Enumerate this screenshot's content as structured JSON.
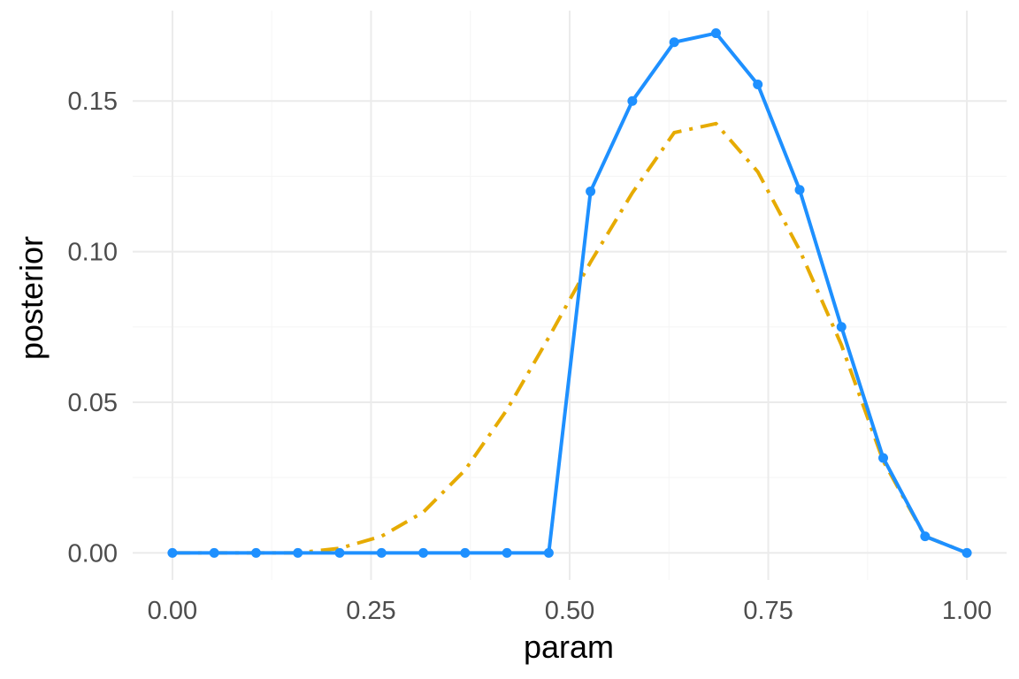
{
  "chart_data": {
    "type": "line",
    "xlabel": "param",
    "ylabel": "posterior",
    "xlim": [
      -0.05,
      1.05
    ],
    "ylim": [
      -0.009,
      0.18
    ],
    "x_ticks": [
      0.0,
      0.25,
      0.5,
      0.75,
      1.0
    ],
    "x_tick_labels": [
      "0.00",
      "0.25",
      "0.50",
      "0.75",
      "1.00"
    ],
    "y_ticks": [
      0.0,
      0.05,
      0.1,
      0.15
    ],
    "y_tick_labels": [
      "0.00",
      "0.05",
      "0.10",
      "0.15"
    ],
    "grid": true,
    "x": [
      0.0,
      0.0526,
      0.1053,
      0.1579,
      0.2105,
      0.2632,
      0.3158,
      0.3684,
      0.4211,
      0.4737,
      0.5263,
      0.5789,
      0.6316,
      0.6842,
      0.7368,
      0.7895,
      0.8421,
      0.8947,
      0.9474,
      1.0
    ],
    "series": [
      {
        "style": "solid-with-points",
        "color": "#1E90FF",
        "values": [
          0.0,
          0.0,
          0.0,
          0.0,
          0.0,
          0.0,
          0.0,
          0.0,
          0.0,
          0.0,
          0.12,
          0.15,
          0.1695,
          0.1725,
          0.1555,
          0.1205,
          0.075,
          0.0315,
          0.0055,
          0.0
        ]
      },
      {
        "style": "dashdot",
        "color": "#E6AB02",
        "values": [
          0.0,
          0.0,
          0.0,
          0.0,
          0.0015,
          0.0055,
          0.0135,
          0.0275,
          0.0475,
          0.0715,
          0.0965,
          0.1195,
          0.1395,
          0.1425,
          0.1265,
          0.1005,
          0.069,
          0.0305,
          0.0055,
          0.0
        ]
      }
    ]
  }
}
